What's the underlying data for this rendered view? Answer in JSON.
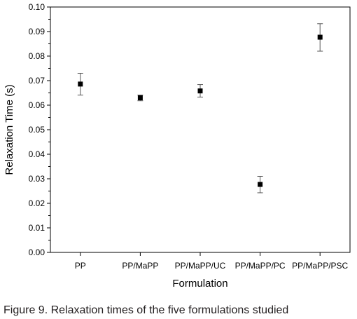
{
  "figure": {
    "caption": "Figure 9. Relaxation times of the five formulations studied"
  },
  "chart_data": {
    "type": "scatter",
    "title": "",
    "xlabel": "Formulation",
    "ylabel": "Relaxation Time (s)",
    "categories": [
      "PP",
      "PP/MaPP",
      "PP/MaPP/UC",
      "PP/MaPP/PC",
      "PP/MaPP/PSC"
    ],
    "values": [
      0.0686,
      0.063,
      0.0658,
      0.0277,
      0.0877
    ],
    "error_low": [
      0.0641,
      0.0618,
      0.0633,
      0.0243,
      0.082
    ],
    "error_high": [
      0.073,
      0.0641,
      0.0684,
      0.031,
      0.0932
    ],
    "ylim": [
      0,
      0.1
    ],
    "yticks": [
      "0.00",
      "0.01",
      "0.02",
      "0.03",
      "0.04",
      "0.05",
      "0.06",
      "0.07",
      "0.08",
      "0.09",
      "0.10"
    ],
    "y_minor_step": 0.005,
    "grid": false,
    "legend": false,
    "colors": {
      "marker": "#000000",
      "error_bar": "#555555",
      "axis": "#000000"
    }
  }
}
